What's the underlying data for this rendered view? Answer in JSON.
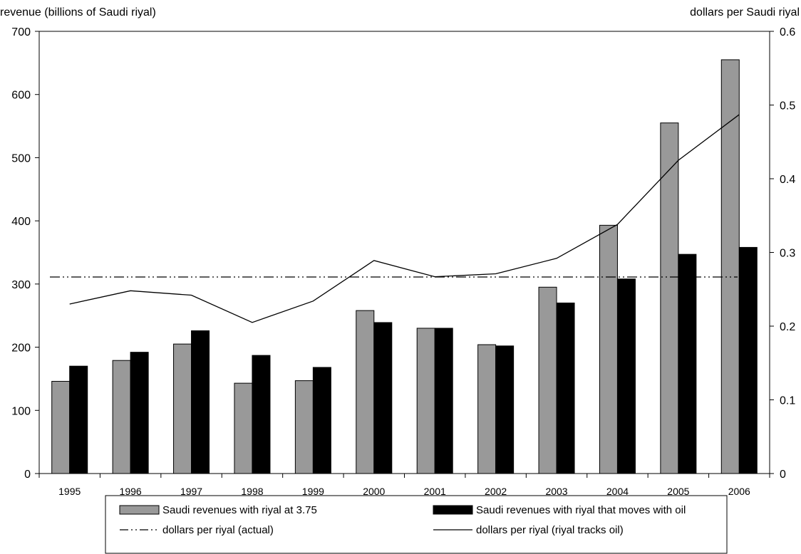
{
  "chart_data": {
    "type": "bar",
    "left_axis_title": "revenue (billions of Saudi riyal)",
    "right_axis_title": "dollars per Saudi riyal",
    "categories": [
      "1995",
      "1996",
      "1997",
      "1998",
      "1999",
      "2000",
      "2001",
      "2002",
      "2003",
      "2004",
      "2005",
      "2006"
    ],
    "y_left": {
      "min": 0,
      "max": 700,
      "ticks": [
        "0",
        "100",
        "200",
        "300",
        "400",
        "500",
        "600",
        "700"
      ]
    },
    "y_right": {
      "min": 0,
      "max": 0.6,
      "ticks": [
        "0",
        "0.1",
        "0.2",
        "0.3",
        "0.4",
        "0.5",
        "0.6"
      ]
    },
    "series": [
      {
        "name": "Saudi revenues with riyal at 3.75",
        "type": "bar",
        "axis": "left",
        "color": "#999999",
        "values": [
          146,
          179,
          205,
          143,
          147,
          258,
          230,
          204,
          295,
          393,
          555,
          655
        ]
      },
      {
        "name": "Saudi revenues with riyal that moves with oil",
        "type": "bar",
        "axis": "left",
        "color": "#000000",
        "values": [
          170,
          192,
          226,
          187,
          168,
          239,
          230,
          202,
          270,
          308,
          347,
          358
        ]
      },
      {
        "name": "dollars per riyal (actual)",
        "type": "line",
        "axis": "right",
        "style": "dash-dot-dot",
        "values": [
          0.2667,
          0.2667,
          0.2667,
          0.2667,
          0.2667,
          0.2667,
          0.2667,
          0.2667,
          0.2667,
          0.2667,
          0.2667,
          0.2667
        ]
      },
      {
        "name": "dollars per riyal (riyal tracks oil)",
        "type": "line",
        "axis": "right",
        "style": "solid",
        "values": [
          0.23,
          0.248,
          0.242,
          0.205,
          0.234,
          0.289,
          0.267,
          0.271,
          0.292,
          0.338,
          0.425,
          0.487
        ]
      }
    ],
    "legend_position": "bottom"
  }
}
